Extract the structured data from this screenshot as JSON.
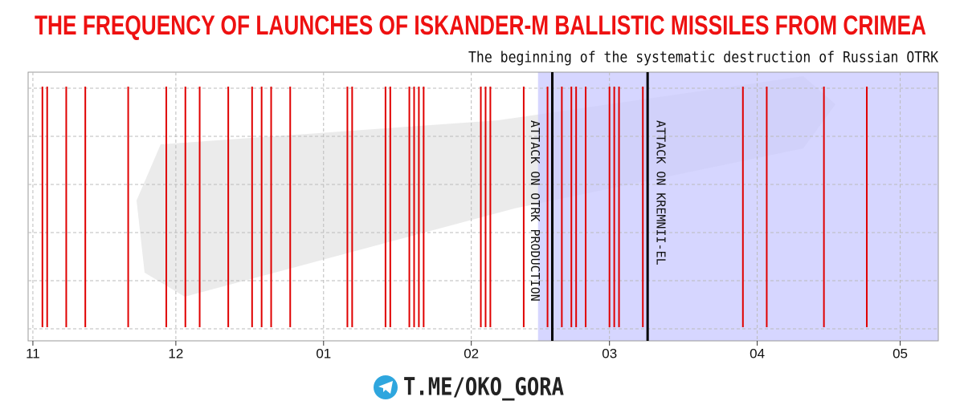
{
  "chart_data": {
    "type": "timeline",
    "title": "THE FREQUENCY OF LAUNCHES OF ISKANDER-M BALLISTIC MISSILES FROM CRIMEA",
    "subtitle": "The beginning of the systematic destruction of Russian OTRK",
    "footer": "T.ME/OKO_GORA",
    "x": [
      2,
      3,
      7,
      11,
      20,
      28,
      32,
      35,
      41,
      46,
      48,
      50,
      54,
      66,
      67,
      74,
      75,
      79,
      80,
      81,
      82,
      94,
      95,
      96,
      103,
      108,
      109,
      111,
      113,
      114,
      116,
      121,
      122,
      123,
      128,
      149,
      154,
      166,
      175
    ],
    "color": "#e00000",
    "xlim": [
      -1,
      190
    ],
    "xticks": [
      {
        "value": 0,
        "label": "11"
      },
      {
        "value": 30,
        "label": "12"
      },
      {
        "value": 61,
        "label": "01"
      },
      {
        "value": 92,
        "label": "02"
      },
      {
        "value": 121,
        "label": "03"
      },
      {
        "value": 152,
        "label": "04"
      },
      {
        "value": 182,
        "label": "05"
      }
    ],
    "grid": true,
    "highlight_span": [
      106,
      190
    ],
    "highlight_color": "#c8c8ff",
    "annotations": [
      {
        "x": 109,
        "label": "ATTACK ON OTRK PRODUCTION",
        "side": "left"
      },
      {
        "x": 129,
        "label": "ATTACK ON KREMNII-EL",
        "side": "right"
      }
    ]
  }
}
